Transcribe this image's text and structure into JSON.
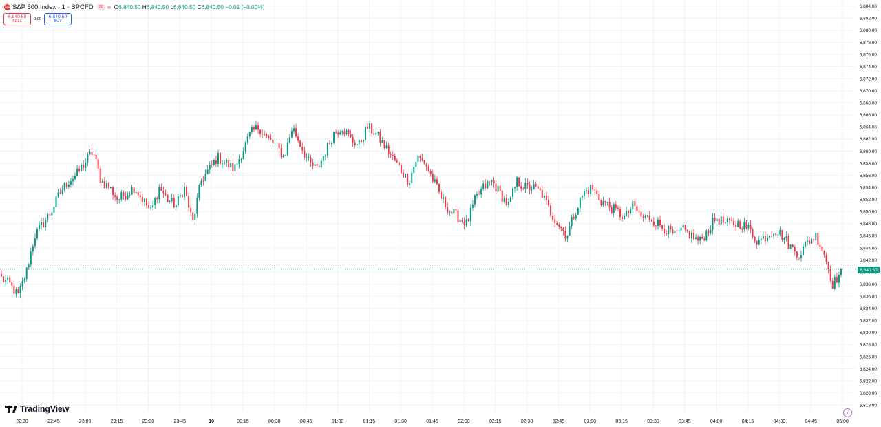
{
  "header": {
    "symbol_badge": "500",
    "title": "S&P 500 Index · 1 · SPCFD",
    "flag": "30",
    "ohlc": {
      "o_label": "O",
      "o": "6,840.50",
      "h_label": "H",
      "h": "6,840.50",
      "l_label": "L",
      "l": "6,840.50",
      "c_label": "C",
      "c": "6,840.50",
      "change": "−0.01 (−0.00%)"
    }
  },
  "trade": {
    "sell_price": "6,840.50",
    "sell_label": "SELL",
    "spread": "0.00",
    "buy_price": "6,840.50",
    "buy_label": "BUY"
  },
  "logo": "TradingView",
  "price_tag": "6,840.50",
  "colors": {
    "up": "#089981",
    "down": "#f23645",
    "grid": "#f0f3fa",
    "text": "#131722"
  },
  "icons": [
    "tradingview-logo-icon",
    "lightning-icon"
  ],
  "chart_data": {
    "type": "candlestick",
    "title": "S&P 500 Index · 1 · SPCFD",
    "interval": "1 minute",
    "ylim": [
      6817,
      6885
    ],
    "y_ticks": [
      6818,
      6820,
      6822,
      6824,
      6826,
      6828,
      6830,
      6832,
      6834,
      6836,
      6838,
      6840,
      6842,
      6844,
      6846,
      6848,
      6850,
      6852,
      6854,
      6856,
      6858,
      6860,
      6862,
      6864,
      6866,
      6868,
      6870,
      6872,
      6874,
      6876,
      6878,
      6880,
      6882,
      6884
    ],
    "y_tick_labels": [
      "6,818.00",
      "6,820.00",
      "6,822.00",
      "6,824.00",
      "6,826.00",
      "6,828.00",
      "6,830.00",
      "6,832.00",
      "6,834.00",
      "6,836.00",
      "6,838.00",
      "6,840.00",
      "6,842.00",
      "6,844.00",
      "6,846.00",
      "6,848.00",
      "6,850.00",
      "6,852.00",
      "6,854.00",
      "6,856.00",
      "6,858.00",
      "6,860.00",
      "6,862.00",
      "6,864.00",
      "6,866.00",
      "6,868.00",
      "6,870.00",
      "6,872.00",
      "6,874.00",
      "6,876.00",
      "6,878.00",
      "6,880.00",
      "6,882.00",
      "6,884.00"
    ],
    "x_tick_labels": [
      "22:30",
      "22:45",
      "23:00",
      "23:15",
      "23:30",
      "23:45",
      "10",
      "00:15",
      "00:30",
      "00:45",
      "01:00",
      "01:15",
      "01:30",
      "01:45",
      "02:00",
      "02:15",
      "02:30",
      "02:45",
      "03:00",
      "03:15",
      "03:30",
      "03:45",
      "04:00",
      "04:15",
      "04:30",
      "04:45",
      "05:00"
    ],
    "last_price": 6840.5,
    "grid": true,
    "close_path": [
      6839,
      6838,
      6836,
      6840,
      6846,
      6848,
      6850,
      6853,
      6855,
      6856,
      6858,
      6860,
      6855,
      6854,
      6852,
      6853,
      6854,
      6852,
      6850,
      6854,
      6852,
      6851,
      6854,
      6848,
      6855,
      6857,
      6859,
      6858,
      6857,
      6860,
      6863,
      6864,
      6862,
      6861,
      6859,
      6864,
      6861,
      6858,
      6857,
      6860,
      6863,
      6864,
      6862,
      6861,
      6864,
      6863,
      6861,
      6859,
      6857,
      6855,
      6859,
      6858,
      6855,
      6852,
      6850,
      6849,
      6848,
      6852,
      6854,
      6855,
      6853,
      6851,
      6855,
      6854,
      6854,
      6853,
      6850,
      6848,
      6846,
      6850,
      6853,
      6854,
      6852,
      6851,
      6850,
      6849,
      6851,
      6849,
      6849,
      6848,
      6847,
      6846,
      6847,
      6846,
      6845,
      6847,
      6849,
      6848,
      6848,
      6848,
      6847,
      6845,
      6846,
      6847,
      6846,
      6844,
      6843,
      6845,
      6846,
      6843,
      6838,
      6840
    ]
  }
}
